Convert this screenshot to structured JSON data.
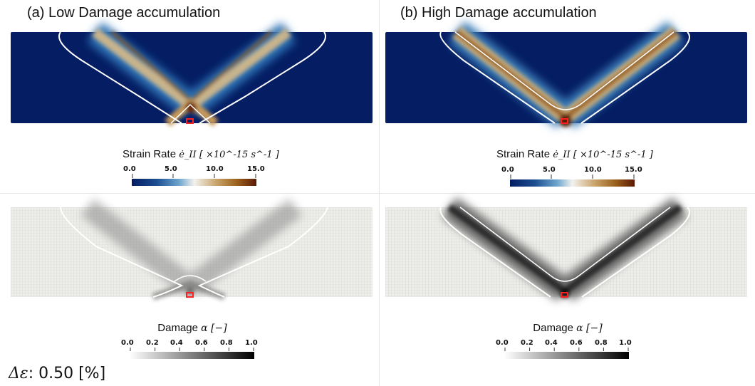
{
  "panels": [
    {
      "title": "(a) Low Damage accumulation"
    },
    {
      "title": "(b) High Damage accumulation"
    }
  ],
  "colorbars": {
    "strain_rate": {
      "title": "Strain Rate ",
      "symbol": "ė_II [ ×10^-15  s^-1 ]",
      "ticks": [
        "0.0",
        "5.0",
        "10.0",
        "15.0"
      ]
    },
    "damage": {
      "title": "Damage ",
      "symbol": "α [−]",
      "ticks": [
        "0.0",
        "0.2",
        "0.4",
        "0.6",
        "0.8",
        "1.0"
      ]
    }
  },
  "strain_increment": {
    "symbol": "Δε",
    "label": ": 0.50 [%]"
  }
}
